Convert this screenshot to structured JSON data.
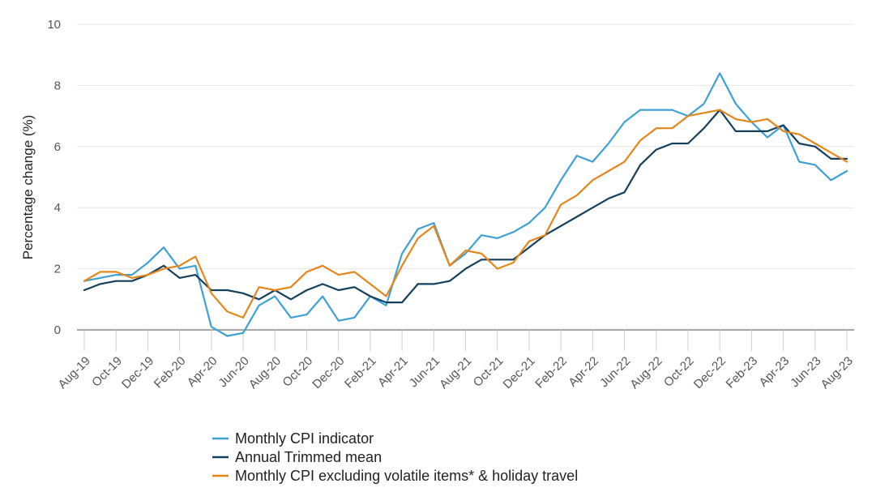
{
  "chart_data": {
    "type": "line",
    "title": "",
    "xlabel": "",
    "ylabel": "Percentage change (%)",
    "ylim": [
      0,
      10
    ],
    "yticks": [
      0,
      2,
      4,
      6,
      8,
      10
    ],
    "grid": true,
    "legend_position": "bottom",
    "x": [
      "Aug-19",
      "Sep-19",
      "Oct-19",
      "Nov-19",
      "Dec-19",
      "Jan-20",
      "Feb-20",
      "Mar-20",
      "Apr-20",
      "May-20",
      "Jun-20",
      "Jul-20",
      "Aug-20",
      "Sep-20",
      "Oct-20",
      "Nov-20",
      "Dec-20",
      "Jan-21",
      "Feb-21",
      "Mar-21",
      "Apr-21",
      "May-21",
      "Jun-21",
      "Jul-21",
      "Aug-21",
      "Sep-21",
      "Oct-21",
      "Nov-21",
      "Dec-21",
      "Jan-22",
      "Feb-22",
      "Mar-22",
      "Apr-22",
      "May-22",
      "Jun-22",
      "Jul-22",
      "Aug-22",
      "Sep-22",
      "Oct-22",
      "Nov-22",
      "Dec-22",
      "Jan-23",
      "Feb-23",
      "Mar-23",
      "Apr-23",
      "May-23",
      "Jun-23",
      "Jul-23",
      "Aug-23"
    ],
    "tick_labels": [
      "Aug-19",
      "Oct-19",
      "Dec-19",
      "Feb-20",
      "Apr-20",
      "Jun-20",
      "Aug-20",
      "Oct-20",
      "Dec-20",
      "Feb-21",
      "Apr-21",
      "Jun-21",
      "Aug-21",
      "Oct-21",
      "Dec-21",
      "Feb-22",
      "Apr-22",
      "Jun-22",
      "Aug-22",
      "Oct-22",
      "Dec-22",
      "Feb-23",
      "Apr-23",
      "Jun-23",
      "Aug-23"
    ],
    "series": [
      {
        "name": "Monthly CPI indicator",
        "color": "#3ea1d3",
        "values": [
          1.6,
          1.7,
          1.8,
          1.8,
          2.2,
          2.7,
          2.0,
          2.1,
          0.1,
          -0.2,
          -0.1,
          0.8,
          1.1,
          0.4,
          0.5,
          1.1,
          0.3,
          0.4,
          1.1,
          0.8,
          2.5,
          3.3,
          3.5,
          2.1,
          2.5,
          3.1,
          3.0,
          3.2,
          3.5,
          4.0,
          4.9,
          5.7,
          5.5,
          6.1,
          6.8,
          7.2,
          7.2,
          7.2,
          7.0,
          7.4,
          8.4,
          7.4,
          6.8,
          6.3,
          6.7,
          5.5,
          5.4,
          4.9,
          5.2
        ]
      },
      {
        "name": "Annual Trimmed mean",
        "color": "#14405e",
        "values": [
          1.3,
          1.5,
          1.6,
          1.6,
          1.8,
          2.1,
          1.7,
          1.8,
          1.3,
          1.3,
          1.2,
          1.0,
          1.3,
          1.0,
          1.3,
          1.5,
          1.3,
          1.4,
          1.1,
          0.9,
          0.9,
          1.5,
          1.5,
          1.6,
          2.0,
          2.3,
          2.3,
          2.3,
          2.7,
          3.1,
          3.4,
          3.7,
          4.0,
          4.3,
          4.5,
          5.4,
          5.9,
          6.1,
          6.1,
          6.6,
          7.2,
          6.5,
          6.5,
          6.5,
          6.7,
          6.1,
          6.0,
          5.6,
          5.6
        ]
      },
      {
        "name": "Monthly CPI excluding volatile items* & holiday travel",
        "color": "#e5861b",
        "values": [
          1.6,
          1.9,
          1.9,
          1.7,
          1.8,
          2.0,
          2.1,
          2.4,
          1.2,
          0.6,
          0.4,
          1.4,
          1.3,
          1.4,
          1.9,
          2.1,
          1.8,
          1.9,
          1.5,
          1.1,
          2.1,
          3.0,
          3.4,
          2.1,
          2.6,
          2.5,
          2.0,
          2.2,
          2.9,
          3.1,
          4.1,
          4.4,
          4.9,
          5.2,
          5.5,
          6.2,
          6.6,
          6.6,
          7.0,
          7.1,
          7.2,
          6.9,
          6.8,
          6.9,
          6.5,
          6.4,
          6.1,
          5.8,
          5.5
        ]
      }
    ]
  }
}
